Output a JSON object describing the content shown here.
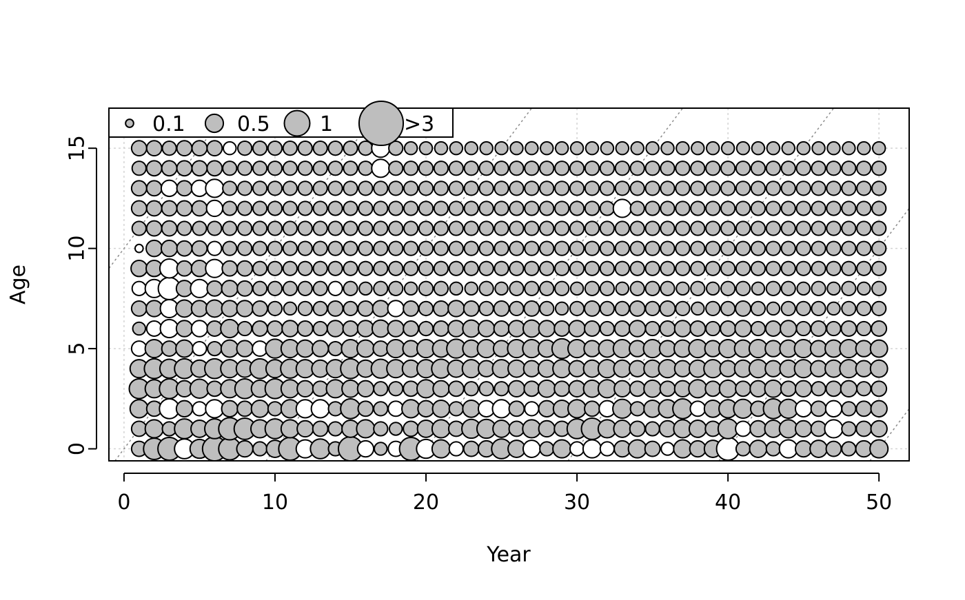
{
  "chart_data": {
    "type": "scatter",
    "subtype": "bubble",
    "xlabel": "Year",
    "ylabel": "Age",
    "xlim": [
      -1,
      52
    ],
    "ylim": [
      -0.6,
      17
    ],
    "xticks": [
      0,
      10,
      20,
      30,
      40,
      50
    ],
    "yticks": [
      0,
      5,
      10,
      15
    ],
    "grid": true,
    "cohort_lines": true,
    "colors": {
      "positive": "#bebebe",
      "negative": "#ffffff",
      "stroke": "#000000",
      "grid": "#d3d3d3",
      "cohort": "#8a8a8a"
    },
    "legend": {
      "position": "top-left",
      "items": [
        {
          "label": "0.1",
          "value": 0.1
        },
        {
          "label": "0.5",
          "value": 0.5
        },
        {
          "label": "1",
          "value": 1
        },
        {
          "label": ">3",
          "value": 3
        }
      ]
    },
    "encoding": "value = signed residual; magnitude shown by circle area; grey = positive, white = negative",
    "years": [
      1,
      2,
      3,
      4,
      5,
      6,
      7,
      8,
      9,
      10,
      11,
      12,
      13,
      14,
      15,
      16,
      17,
      18,
      19,
      20,
      21,
      22,
      23,
      24,
      25,
      26,
      27,
      28,
      29,
      30,
      31,
      32,
      33,
      34,
      35,
      36,
      37,
      38,
      39,
      40,
      41,
      42,
      43,
      44,
      45,
      46,
      47,
      48,
      49,
      50
    ],
    "ages": [
      0,
      1,
      2,
      3,
      4,
      5,
      6,
      7,
      8,
      9,
      10,
      11,
      12,
      13,
      14,
      15
    ],
    "values": [
      [
        0.35,
        0.7,
        0.8,
        -0.6,
        0.55,
        0.9,
        0.75,
        0.4,
        0.3,
        0.45,
        0.8,
        -0.5,
        0.6,
        0.3,
        0.9,
        -0.4,
        0.25,
        -0.35,
        0.8,
        -0.55,
        0.5,
        -0.3,
        0.35,
        0.4,
        0.6,
        0.45,
        -0.45,
        0.3,
        0.5,
        -0.3,
        -0.5,
        -0.3,
        0.4,
        0.5,
        0.35,
        -0.25,
        0.5,
        0.4,
        0.45,
        -0.8,
        0.3,
        0.45,
        0.3,
        -0.5,
        0.4,
        0.45,
        0.35,
        0.3,
        0.4,
        0.5
      ],
      [
        0.35,
        0.5,
        0.3,
        0.6,
        0.45,
        0.6,
        0.75,
        0.7,
        0.5,
        0.6,
        0.5,
        0.4,
        0.35,
        0.3,
        0.45,
        0.5,
        0.3,
        0.25,
        0.35,
        0.45,
        0.5,
        0.35,
        0.55,
        0.55,
        0.45,
        0.35,
        0.5,
        0.4,
        0.35,
        0.6,
        0.7,
        0.5,
        0.45,
        0.35,
        0.3,
        0.4,
        0.5,
        0.45,
        0.35,
        0.6,
        -0.35,
        0.4,
        0.45,
        0.5,
        0.4,
        0.35,
        -0.5,
        0.3,
        0.35,
        0.4
      ],
      [
        0.5,
        0.35,
        -0.6,
        0.4,
        -0.3,
        -0.5,
        0.4,
        0.35,
        0.45,
        0.3,
        0.5,
        -0.5,
        -0.5,
        0.3,
        0.6,
        0.35,
        0.3,
        -0.35,
        0.5,
        0.4,
        0.45,
        0.3,
        0.45,
        -0.4,
        -0.5,
        0.35,
        -0.3,
        0.4,
        0.45,
        0.5,
        0.35,
        -0.4,
        0.55,
        0.3,
        0.45,
        0.5,
        0.6,
        -0.35,
        0.45,
        0.5,
        0.55,
        0.35,
        0.6,
        0.55,
        -0.4,
        0.35,
        -0.4,
        0.3,
        0.35,
        0.4
      ],
      [
        0.6,
        0.5,
        0.6,
        0.4,
        0.55,
        0.35,
        0.5,
        0.6,
        0.45,
        0.6,
        0.5,
        0.4,
        0.35,
        0.5,
        0.45,
        0.4,
        0.3,
        0.3,
        0.35,
        0.5,
        0.4,
        0.35,
        0.3,
        0.3,
        0.3,
        0.4,
        0.35,
        0.45,
        0.35,
        0.4,
        0.45,
        0.5,
        0.4,
        0.35,
        0.45,
        0.35,
        0.4,
        0.5,
        0.35,
        0.45,
        0.35,
        0.4,
        0.45,
        0.35,
        0.4,
        0.3,
        0.35,
        0.4,
        0.3,
        0.35
      ],
      [
        0.5,
        0.6,
        0.55,
        0.6,
        0.45,
        0.6,
        0.5,
        0.45,
        0.6,
        0.5,
        0.55,
        0.5,
        0.45,
        0.5,
        0.6,
        0.45,
        0.55,
        0.5,
        0.45,
        0.5,
        0.55,
        0.45,
        0.5,
        0.4,
        0.5,
        0.45,
        0.4,
        0.45,
        0.5,
        0.4,
        0.45,
        0.5,
        0.45,
        0.4,
        0.45,
        0.5,
        0.4,
        0.45,
        0.5,
        0.4,
        0.45,
        0.5,
        0.4,
        0.45,
        0.5,
        0.4,
        0.45,
        0.5,
        0.4,
        0.45
      ],
      [
        -0.35,
        0.5,
        0.35,
        0.45,
        -0.3,
        0.3,
        0.45,
        0.4,
        -0.35,
        0.55,
        0.5,
        0.45,
        0.4,
        0.3,
        0.5,
        0.45,
        0.35,
        0.5,
        0.4,
        0.5,
        0.45,
        0.55,
        0.45,
        0.5,
        0.4,
        0.5,
        0.5,
        0.45,
        0.6,
        0.5,
        0.4,
        0.45,
        0.5,
        0.4,
        0.5,
        0.4,
        0.45,
        0.5,
        0.4,
        0.5,
        0.45,
        0.5,
        0.4,
        0.45,
        0.5,
        0.4,
        0.45,
        0.5,
        0.4,
        0.45
      ],
      [
        0.25,
        -0.35,
        -0.5,
        0.4,
        -0.4,
        0.35,
        0.5,
        0.3,
        0.35,
        0.35,
        0.4,
        0.35,
        0.3,
        0.4,
        0.35,
        0.4,
        0.45,
        0.4,
        0.35,
        0.3,
        0.35,
        0.4,
        0.45,
        0.4,
        0.35,
        0.4,
        0.45,
        0.4,
        0.35,
        0.4,
        0.35,
        0.3,
        0.35,
        0.4,
        0.3,
        0.35,
        0.4,
        0.35,
        0.3,
        0.35,
        0.4,
        0.3,
        0.35,
        0.4,
        0.3,
        0.35,
        0.3,
        0.35,
        0.3,
        0.35
      ],
      [
        0.35,
        0.4,
        -0.5,
        0.45,
        0.4,
        0.45,
        0.4,
        0.4,
        0.35,
        0.3,
        0.25,
        0.3,
        0.3,
        0.35,
        0.3,
        0.35,
        0.4,
        -0.4,
        0.35,
        0.3,
        0.35,
        0.4,
        0.35,
        0.3,
        0.35,
        0.3,
        0.35,
        0.3,
        0.25,
        0.3,
        0.35,
        0.3,
        0.3,
        0.35,
        0.3,
        0.35,
        0.3,
        0.25,
        0.3,
        0.3,
        0.35,
        0.3,
        0.25,
        0.3,
        0.3,
        0.3,
        0.25,
        0.3,
        0.3,
        0.3
      ],
      [
        -0.3,
        -0.5,
        -0.75,
        0.4,
        -0.5,
        0.35,
        0.4,
        0.35,
        0.3,
        0.3,
        0.3,
        0.3,
        0.3,
        -0.3,
        0.3,
        0.25,
        0.3,
        0.3,
        0.25,
        0.3,
        0.3,
        0.25,
        0.25,
        0.3,
        0.25,
        0.3,
        0.3,
        0.3,
        0.3,
        0.25,
        0.3,
        0.3,
        0.25,
        0.3,
        0.3,
        0.3,
        0.25,
        0.3,
        0.25,
        0.3,
        0.3,
        0.25,
        0.3,
        0.3,
        0.25,
        0.3,
        0.25,
        0.3,
        0.25,
        0.3
      ],
      [
        0.4,
        0.4,
        -0.55,
        0.35,
        0.4,
        -0.5,
        0.35,
        0.35,
        0.3,
        0.3,
        0.3,
        0.3,
        0.3,
        0.3,
        0.3,
        0.3,
        0.3,
        0.3,
        0.3,
        0.3,
        0.3,
        0.3,
        0.3,
        0.3,
        0.3,
        0.3,
        0.3,
        0.3,
        0.3,
        0.3,
        0.3,
        0.3,
        0.3,
        0.3,
        0.3,
        0.3,
        0.3,
        0.3,
        0.3,
        0.3,
        0.3,
        0.3,
        0.3,
        0.3,
        0.3,
        0.3,
        0.3,
        0.3,
        0.3,
        0.3
      ],
      [
        -0.1,
        0.4,
        0.4,
        0.35,
        0.35,
        -0.3,
        0.3,
        0.3,
        0.3,
        0.3,
        0.3,
        0.3,
        0.3,
        0.3,
        0.3,
        0.3,
        0.3,
        0.3,
        0.3,
        0.3,
        0.3,
        0.3,
        0.3,
        0.3,
        0.3,
        0.3,
        0.3,
        0.3,
        0.3,
        0.3,
        0.3,
        0.3,
        0.3,
        0.3,
        0.3,
        0.3,
        0.3,
        0.3,
        0.3,
        0.3,
        0.3,
        0.3,
        0.3,
        0.3,
        0.3,
        0.3,
        0.3,
        0.3,
        0.3,
        0.3
      ],
      [
        0.3,
        0.35,
        0.35,
        0.3,
        0.3,
        0.3,
        0.3,
        0.3,
        0.3,
        0.3,
        0.3,
        0.3,
        0.3,
        0.3,
        0.3,
        0.3,
        0.3,
        0.3,
        0.3,
        0.3,
        0.3,
        0.3,
        0.3,
        0.3,
        0.3,
        0.3,
        0.3,
        0.3,
        0.3,
        0.3,
        0.3,
        0.3,
        0.3,
        0.3,
        0.3,
        0.3,
        0.3,
        0.3,
        0.3,
        0.3,
        0.3,
        0.3,
        0.3,
        0.3,
        0.3,
        0.3,
        0.3,
        0.3,
        0.3,
        0.3
      ],
      [
        0.35,
        0.35,
        0.35,
        0.35,
        0.35,
        -0.4,
        0.3,
        0.3,
        0.3,
        0.3,
        0.3,
        0.3,
        0.3,
        0.3,
        0.3,
        0.3,
        0.3,
        0.3,
        0.3,
        0.3,
        0.3,
        0.3,
        0.3,
        0.3,
        0.3,
        0.3,
        0.3,
        0.3,
        0.3,
        0.3,
        0.3,
        0.3,
        -0.5,
        0.3,
        0.3,
        0.3,
        0.3,
        0.3,
        0.3,
        0.3,
        0.3,
        0.3,
        0.3,
        0.3,
        0.3,
        0.3,
        0.3,
        0.3,
        0.3,
        0.3
      ],
      [
        0.35,
        0.35,
        -0.4,
        0.35,
        -0.4,
        -0.5,
        0.3,
        0.3,
        0.3,
        0.3,
        0.3,
        0.3,
        0.3,
        0.3,
        0.3,
        0.3,
        0.3,
        0.3,
        0.3,
        0.3,
        0.3,
        0.3,
        0.3,
        0.3,
        0.3,
        0.3,
        0.3,
        0.3,
        0.3,
        0.3,
        0.3,
        0.3,
        0.3,
        0.3,
        0.3,
        0.3,
        0.3,
        0.3,
        0.3,
        0.3,
        0.3,
        0.3,
        0.3,
        0.3,
        0.3,
        0.3,
        0.3,
        0.3,
        0.3,
        0.3
      ],
      [
        0.3,
        0.35,
        0.35,
        0.35,
        0.35,
        0.35,
        0.3,
        0.3,
        0.3,
        0.3,
        0.3,
        0.3,
        0.3,
        0.3,
        0.3,
        0.3,
        -0.5,
        0.3,
        0.3,
        0.3,
        0.3,
        0.3,
        0.3,
        0.3,
        0.3,
        0.3,
        0.3,
        0.3,
        0.3,
        0.3,
        0.3,
        0.3,
        0.3,
        0.3,
        0.3,
        0.3,
        0.3,
        0.3,
        0.3,
        0.3,
        0.3,
        0.3,
        0.3,
        0.3,
        0.3,
        0.3,
        0.3,
        0.3,
        0.3,
        0.3
      ],
      [
        0.35,
        0.35,
        0.3,
        0.35,
        0.35,
        0.35,
        -0.25,
        0.3,
        0.3,
        0.3,
        0.3,
        0.3,
        0.3,
        0.3,
        0.3,
        0.3,
        -0.5,
        0.3,
        0.25,
        0.25,
        0.25,
        0.25,
        0.25,
        0.25,
        0.25,
        0.25,
        0.25,
        0.25,
        0.25,
        0.25,
        0.25,
        0.25,
        0.25,
        0.25,
        0.25,
        0.25,
        0.25,
        0.25,
        0.25,
        0.25,
        0.25,
        0.25,
        0.25,
        0.25,
        0.25,
        0.25,
        0.25,
        0.25,
        0.25,
        0.25
      ]
    ]
  }
}
